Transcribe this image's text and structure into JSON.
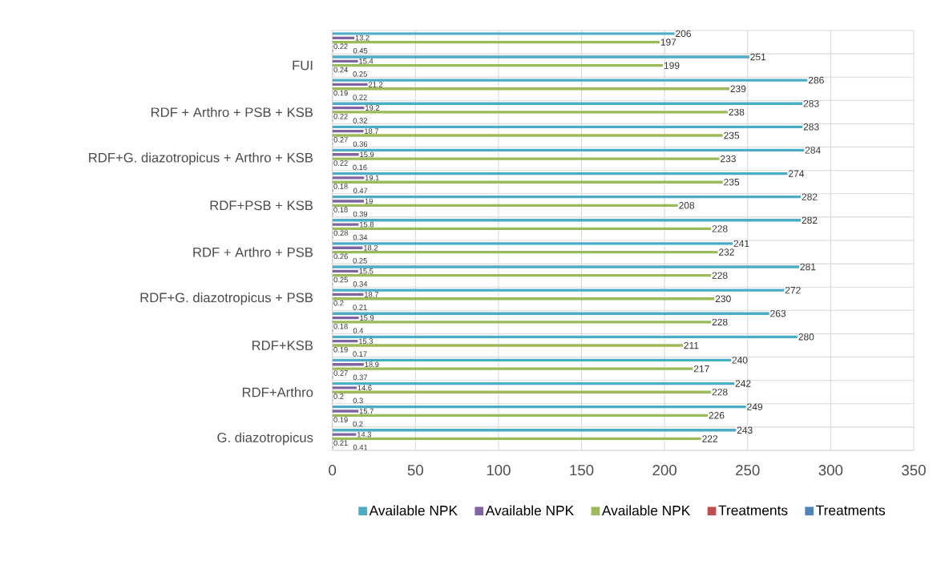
{
  "chart_data": {
    "type": "bar",
    "orientation": "horizontal",
    "categories": [
      null,
      "FUI",
      null,
      "RDF + Arthro + PSB + KSB",
      null,
      "RDF+G. diazotropicus + Arthro + KSB",
      null,
      "RDF+PSB + KSB",
      null,
      "RDF + Arthro + PSB",
      null,
      "RDF+G. diazotropicus + PSB",
      null,
      "RDF+KSB",
      null,
      "RDF+Arthro",
      null,
      "G. diazotropicus"
    ],
    "series": [
      {
        "name": "Available NPK",
        "color": "#4bacc6",
        "values": [
          206,
          251,
          286,
          283,
          283,
          284,
          274,
          282,
          282,
          241,
          281,
          272,
          263,
          280,
          240,
          242,
          249,
          243
        ]
      },
      {
        "name": "Available NPK",
        "color": "#8064a2",
        "values": [
          13.2,
          15.4,
          21.2,
          19.2,
          18.7,
          15.9,
          19.1,
          19,
          15.8,
          18.2,
          15.5,
          18.7,
          15.9,
          15.3,
          18.9,
          14.6,
          15.7,
          14.3
        ]
      },
      {
        "name": "Available NPK",
        "color": "#9bbb59",
        "values": [
          197,
          199,
          239,
          238,
          235,
          233,
          235,
          208,
          228,
          232,
          228,
          230,
          228,
          211,
          217,
          228,
          226,
          222
        ]
      },
      {
        "name": "Treatments",
        "color": "#c0504d",
        "values": [
          0.22,
          0.24,
          0.19,
          0.22,
          0.27,
          0.22,
          0.18,
          0.18,
          0.28,
          0.26,
          0.25,
          0.2,
          0.18,
          0.19,
          0.27,
          0.2,
          0.19,
          0.21
        ]
      },
      {
        "name": "Treatments",
        "color": "#4f81bd",
        "values": [
          0.45,
          0.25,
          0.22,
          0.32,
          0.36,
          0.16,
          0.47,
          0.39,
          0.34,
          0.25,
          0.34,
          0.21,
          0.4,
          0.17,
          0.37,
          0.3,
          0.2,
          0.41
        ]
      }
    ],
    "xlim": [
      0,
      350
    ],
    "xticks": [
      0,
      50,
      100,
      150,
      200,
      250,
      300,
      350
    ],
    "grid": true,
    "legend": "bottom",
    "data_labels": true
  }
}
